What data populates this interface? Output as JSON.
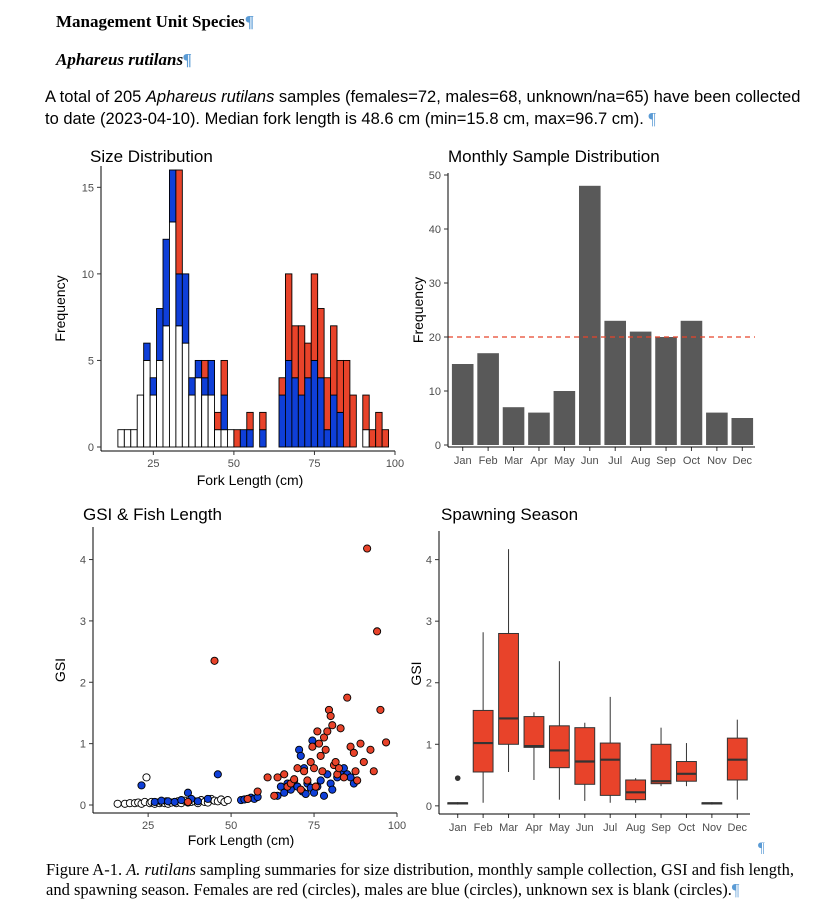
{
  "document": {
    "heading": "Management Unit Species",
    "species_heading": "Aphareus rutilans",
    "paragraph_mark": "¶",
    "intro": {
      "prefix": "A total of 205 ",
      "species": "Aphareus rutilans",
      "suffix": " samples (females=72, males=68, unknown/na=65) have been collected to date (2023-04-10). Median fork length is 48.6 cm (min=15.8 cm, max=96.7 cm)."
    },
    "caption": {
      "prefix": "Figure A-1. ",
      "species": "A. rutilans",
      "suffix": " sampling summaries for size distribution, monthly sample collection, GSI and fish length, and spawning season. Females are red (circles), males are blue (circles), unknown sex is blank (circles)."
    }
  },
  "colors": {
    "female": "#e8432a",
    "male": "#0f3fd8",
    "unknown": "#ffffff",
    "bar_gray": "#595959",
    "ref_line": "#e8432a"
  },
  "chart_data": [
    {
      "type": "bar",
      "title": "Size Distribution",
      "xlabel": "Fork Length (cm)",
      "ylabel": "Frequency",
      "xlim": [
        10,
        100
      ],
      "ylim": [
        0,
        16
      ],
      "xticks": [
        25,
        50,
        75,
        100
      ],
      "yticks": [
        0,
        5,
        10,
        15
      ],
      "stacked": true,
      "bin_width": 2,
      "bin_starts": [
        14,
        16,
        18,
        20,
        22,
        24,
        26,
        28,
        30,
        32,
        34,
        36,
        38,
        40,
        42,
        44,
        46,
        48,
        50,
        52,
        54,
        56,
        58,
        60,
        62,
        64,
        66,
        68,
        70,
        72,
        74,
        76,
        78,
        80,
        82,
        84,
        86,
        88,
        90,
        92,
        94,
        96
      ],
      "series": [
        {
          "sex": "unknown",
          "values": [
            1,
            1,
            1,
            3,
            5,
            3,
            5,
            7,
            13,
            7,
            6,
            3,
            4,
            3,
            3,
            1,
            1,
            1,
            0,
            0,
            0,
            0,
            0,
            0,
            0,
            0,
            0,
            0,
            0,
            0,
            0,
            0,
            0,
            0,
            0,
            0,
            0,
            0,
            1,
            0,
            0,
            0
          ]
        },
        {
          "sex": "male",
          "values": [
            0,
            0,
            0,
            0,
            1,
            1,
            3,
            5,
            3,
            3,
            4,
            1,
            1,
            1,
            2,
            0,
            2,
            0,
            0,
            1,
            1,
            0,
            1,
            0,
            0,
            3,
            5,
            4,
            3,
            4,
            5,
            4,
            1,
            3,
            2,
            0,
            0,
            0,
            0,
            0,
            0,
            0
          ]
        },
        {
          "sex": "female",
          "values": [
            0,
            0,
            0,
            0,
            0,
            0,
            0,
            0,
            0,
            6,
            0,
            0,
            0,
            1,
            0,
            1,
            2,
            0,
            1,
            0,
            1,
            0,
            1,
            0,
            0,
            1,
            5,
            3,
            4,
            2,
            5,
            4,
            3,
            4,
            3,
            5,
            3,
            0,
            2,
            1,
            2,
            1
          ]
        }
      ]
    },
    {
      "type": "bar",
      "title": "Monthly Sample Distribution",
      "xlabel": "",
      "ylabel": "Frequency",
      "ylim": [
        0,
        50
      ],
      "yticks": [
        0,
        10,
        20,
        30,
        40,
        50
      ],
      "categories": [
        "Jan",
        "Feb",
        "Mar",
        "Apr",
        "May",
        "Jun",
        "Jul",
        "Aug",
        "Sep",
        "Oct",
        "Nov",
        "Dec"
      ],
      "values": [
        15,
        17,
        7,
        6,
        10,
        48,
        23,
        21,
        20,
        23,
        6,
        5
      ],
      "reference_line": 20
    },
    {
      "type": "scatter",
      "title": "GSI & Fish Length",
      "xlabel": "Fork Length (cm)",
      "ylabel": "GSI",
      "xlim": [
        12,
        100
      ],
      "ylim": [
        0,
        4.4
      ],
      "xticks": [
        25,
        50,
        75,
        100
      ],
      "yticks": [
        0,
        1,
        2,
        3,
        4
      ],
      "points": [
        [
          15.8,
          0.02,
          "u"
        ],
        [
          18,
          0.02,
          "u"
        ],
        [
          19.5,
          0.03,
          "u"
        ],
        [
          21,
          0.03,
          "u"
        ],
        [
          22,
          0.04,
          "u"
        ],
        [
          23,
          0.02,
          "u"
        ],
        [
          24,
          0.05,
          "u"
        ],
        [
          24.5,
          0.45,
          "u"
        ],
        [
          25.5,
          0.03,
          "u"
        ],
        [
          26,
          0.05,
          "u"
        ],
        [
          27,
          0.02,
          "u"
        ],
        [
          28,
          0.04,
          "u"
        ],
        [
          28.5,
          0.03,
          "u"
        ],
        [
          29,
          0.05,
          "u"
        ],
        [
          30,
          0.03,
          "u"
        ],
        [
          30.5,
          0.06,
          "u"
        ],
        [
          31,
          0.02,
          "u"
        ],
        [
          32,
          0.04,
          "u"
        ],
        [
          33,
          0.05,
          "u"
        ],
        [
          33.5,
          0.03,
          "u"
        ],
        [
          34,
          0.06,
          "u"
        ],
        [
          35,
          0.03,
          "u"
        ],
        [
          36,
          0.07,
          "u"
        ],
        [
          37,
          0.04,
          "u"
        ],
        [
          38,
          0.05,
          "u"
        ],
        [
          39,
          0.06,
          "u"
        ],
        [
          40,
          0.03,
          "u"
        ],
        [
          41,
          0.08,
          "u"
        ],
        [
          42,
          0.05,
          "u"
        ],
        [
          43,
          0.04,
          "u"
        ],
        [
          44,
          0.1,
          "u"
        ],
        [
          45,
          0.07,
          "u"
        ],
        [
          46,
          0.06,
          "u"
        ],
        [
          47,
          0.09,
          "u"
        ],
        [
          48,
          0.05,
          "u"
        ],
        [
          49,
          0.08,
          "u"
        ],
        [
          23,
          0.32,
          "m"
        ],
        [
          27,
          0.05,
          "m"
        ],
        [
          29,
          0.07,
          "m"
        ],
        [
          31,
          0.06,
          "m"
        ],
        [
          33,
          0.05,
          "m"
        ],
        [
          35,
          0.08,
          "m"
        ],
        [
          37,
          0.2,
          "m"
        ],
        [
          38,
          0.1,
          "m"
        ],
        [
          40,
          0.06,
          "m"
        ],
        [
          43,
          0.1,
          "m"
        ],
        [
          46,
          0.5,
          "m"
        ],
        [
          53,
          0.08,
          "m"
        ],
        [
          54,
          0.09,
          "m"
        ],
        [
          55,
          0.1,
          "m"
        ],
        [
          56,
          0.12,
          "m"
        ],
        [
          57,
          0.1,
          "m"
        ],
        [
          58,
          0.13,
          "m"
        ],
        [
          64,
          0.15,
          "m"
        ],
        [
          65,
          0.3,
          "m"
        ],
        [
          66,
          0.2,
          "m"
        ],
        [
          67,
          0.35,
          "m"
        ],
        [
          68,
          0.25,
          "m"
        ],
        [
          69,
          0.4,
          "m"
        ],
        [
          70,
          0.3,
          "m"
        ],
        [
          70.5,
          0.9,
          "m"
        ],
        [
          71,
          0.8,
          "m"
        ],
        [
          71.5,
          0.22,
          "m"
        ],
        [
          72,
          0.6,
          "m"
        ],
        [
          72.5,
          0.18,
          "m"
        ],
        [
          73,
          0.35,
          "m"
        ],
        [
          74,
          0.28,
          "m"
        ],
        [
          74.5,
          1.05,
          "m"
        ],
        [
          75,
          0.2,
          "m"
        ],
        [
          76,
          0.3,
          "m"
        ],
        [
          77,
          0.4,
          "m"
        ],
        [
          78,
          0.15,
          "m"
        ],
        [
          79,
          0.5,
          "m"
        ],
        [
          80,
          0.35,
          "m"
        ],
        [
          80.5,
          0.25,
          "m"
        ],
        [
          82,
          0.45,
          "m"
        ],
        [
          83,
          0.55,
          "m"
        ],
        [
          84,
          0.6,
          "m"
        ],
        [
          85,
          0.5,
          "m"
        ],
        [
          86,
          0.45,
          "m"
        ],
        [
          87,
          0.35,
          "m"
        ],
        [
          45,
          2.35,
          "f"
        ],
        [
          37,
          0.05,
          "f"
        ],
        [
          55,
          0.1,
          "f"
        ],
        [
          58,
          0.22,
          "f"
        ],
        [
          61,
          0.45,
          "f"
        ],
        [
          63,
          0.15,
          "f"
        ],
        [
          64,
          0.45,
          "f"
        ],
        [
          66,
          0.5,
          "f"
        ],
        [
          67,
          0.3,
          "f"
        ],
        [
          68,
          0.35,
          "f"
        ],
        [
          69,
          0.42,
          "f"
        ],
        [
          70,
          0.6,
          "f"
        ],
        [
          71,
          0.25,
          "f"
        ],
        [
          72,
          0.55,
          "f"
        ],
        [
          73,
          0.4,
          "f"
        ],
        [
          74,
          0.7,
          "f"
        ],
        [
          74.5,
          0.95,
          "f"
        ],
        [
          75,
          0.6,
          "f"
        ],
        [
          75.5,
          0.3,
          "f"
        ],
        [
          76,
          1.2,
          "f"
        ],
        [
          76.5,
          1.0,
          "f"
        ],
        [
          77,
          0.8,
          "f"
        ],
        [
          77.5,
          0.55,
          "f"
        ],
        [
          78,
          1.1,
          "f"
        ],
        [
          78.5,
          0.9,
          "f"
        ],
        [
          79,
          1.2,
          "f"
        ],
        [
          79.5,
          1.55,
          "f"
        ],
        [
          80,
          1.45,
          "f"
        ],
        [
          80.5,
          1.3,
          "f"
        ],
        [
          81,
          0.65,
          "f"
        ],
        [
          81.5,
          0.7,
          "f"
        ],
        [
          82,
          0.5,
          "f"
        ],
        [
          82.5,
          0.6,
          "f"
        ],
        [
          83,
          1.25,
          "f"
        ],
        [
          84,
          0.45,
          "f"
        ],
        [
          85,
          1.75,
          "f"
        ],
        [
          86,
          0.95,
          "f"
        ],
        [
          87,
          0.85,
          "f"
        ],
        [
          87.5,
          0.55,
          "f"
        ],
        [
          88,
          0.4,
          "f"
        ],
        [
          89,
          1.0,
          "f"
        ],
        [
          90,
          0.7,
          "f"
        ],
        [
          91,
          4.18,
          "f"
        ],
        [
          92,
          0.9,
          "f"
        ],
        [
          93,
          0.55,
          "f"
        ],
        [
          94,
          2.83,
          "f"
        ],
        [
          95,
          1.55,
          "f"
        ],
        [
          96.7,
          1.02,
          "f"
        ]
      ]
    },
    {
      "type": "box",
      "title": "Spawning Season",
      "xlabel": "",
      "ylabel": "GSI",
      "ylim": [
        -0.1,
        4.4
      ],
      "yticks": [
        0,
        1,
        2,
        3,
        4
      ],
      "categories": [
        "Jan",
        "Feb",
        "Mar",
        "Apr",
        "May",
        "Jun",
        "Jul",
        "Aug",
        "Sep",
        "Oct",
        "Nov",
        "Dec"
      ],
      "boxes": [
        {
          "min": 0.02,
          "q1": 0.03,
          "median": 0.04,
          "q3": 0.05,
          "max": 0.06,
          "outliers": [
            0.45
          ]
        },
        {
          "min": 0.05,
          "q1": 0.55,
          "median": 1.02,
          "q3": 1.55,
          "max": 2.82,
          "outliers": []
        },
        {
          "min": 0.55,
          "q1": 1.0,
          "median": 1.42,
          "q3": 2.8,
          "max": 4.17,
          "outliers": []
        },
        {
          "min": 0.42,
          "q1": 0.95,
          "median": 0.97,
          "q3": 1.45,
          "max": 1.52,
          "outliers": []
        },
        {
          "min": 0.1,
          "q1": 0.62,
          "median": 0.9,
          "q3": 1.3,
          "max": 2.35,
          "outliers": []
        },
        {
          "min": 0.08,
          "q1": 0.35,
          "median": 0.72,
          "q3": 1.27,
          "max": 1.35,
          "outliers": []
        },
        {
          "min": 0.05,
          "q1": 0.17,
          "median": 0.75,
          "q3": 1.02,
          "max": 1.77,
          "outliers": []
        },
        {
          "min": 0.05,
          "q1": 0.1,
          "median": 0.22,
          "q3": 0.42,
          "max": 0.45,
          "outliers": []
        },
        {
          "min": 0.32,
          "q1": 0.36,
          "median": 0.4,
          "q3": 1.0,
          "max": 1.27,
          "outliers": []
        },
        {
          "min": 0.32,
          "q1": 0.4,
          "median": 0.52,
          "q3": 0.72,
          "max": 1.02,
          "outliers": []
        },
        {
          "min": 0.02,
          "q1": 0.03,
          "median": 0.04,
          "q3": 0.05,
          "max": 0.06,
          "outliers": []
        },
        {
          "min": 0.1,
          "q1": 0.42,
          "median": 0.75,
          "q3": 1.1,
          "max": 1.4,
          "outliers": []
        }
      ]
    }
  ]
}
